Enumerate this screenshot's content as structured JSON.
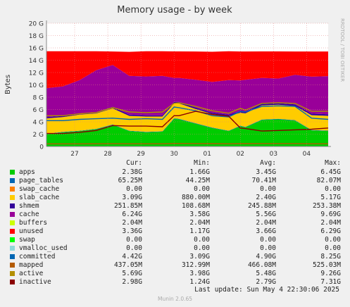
{
  "chart_data": {
    "type": "area",
    "title": "Memory usage - by week",
    "ylabel": "Bytes",
    "side_label": "RRDTOOL / TOBI OETIKER",
    "ylim": [
      0,
      20
    ],
    "yticks": [
      {
        "v": 0,
        "label": "0"
      },
      {
        "v": 2,
        "label": "2 G"
      },
      {
        "v": 4,
        "label": "4 G"
      },
      {
        "v": 6,
        "label": "6 G"
      },
      {
        "v": 8,
        "label": "8 G"
      },
      {
        "v": 10,
        "label": "10 G"
      },
      {
        "v": 12,
        "label": "12 G"
      },
      {
        "v": 14,
        "label": "14 G"
      },
      {
        "v": 16,
        "label": "16 G"
      },
      {
        "v": 18,
        "label": "18 G"
      },
      {
        "v": 20,
        "label": "20 G"
      }
    ],
    "xlim": [
      0,
      8.5
    ],
    "xticks": [
      {
        "v": 0.85,
        "label": "27"
      },
      {
        "v": 1.85,
        "label": "28"
      },
      {
        "v": 2.85,
        "label": "29"
      },
      {
        "v": 3.85,
        "label": "30"
      },
      {
        "v": 4.85,
        "label": "01"
      },
      {
        "v": 5.85,
        "label": "02"
      },
      {
        "v": 6.85,
        "label": "03"
      },
      {
        "v": 7.85,
        "label": "04"
      }
    ],
    "x": [
      0,
      0.5,
      1.0,
      1.5,
      2.0,
      2.5,
      3.0,
      3.5,
      3.85,
      4.0,
      4.5,
      5.0,
      5.5,
      5.85,
      6.0,
      6.5,
      7.0,
      7.5,
      8.0,
      8.5
    ],
    "stack_series": [
      {
        "name": "apps",
        "color": "#00cc00",
        "values": [
          2.0,
          2.3,
          2.5,
          2.8,
          3.5,
          2.5,
          2.3,
          2.4,
          4.5,
          4.4,
          3.7,
          3.0,
          2.5,
          3.3,
          3.1,
          4.3,
          4.4,
          4.2,
          2.6,
          2.5
        ]
      },
      {
        "name": "page_tables",
        "color": "#0066b3",
        "values": [
          0.06,
          0.06,
          0.06,
          0.06,
          0.07,
          0.06,
          0.06,
          0.06,
          0.08,
          0.08,
          0.07,
          0.07,
          0.06,
          0.07,
          0.07,
          0.08,
          0.08,
          0.07,
          0.07,
          0.07
        ]
      },
      {
        "name": "swap_cache",
        "color": "#ff8000",
        "values": [
          0,
          0,
          0,
          0,
          0,
          0,
          0,
          0,
          0,
          0,
          0,
          0,
          0,
          0,
          0,
          0,
          0,
          0,
          0,
          0
        ]
      },
      {
        "name": "slab_cache",
        "color": "#ffcc00",
        "values": [
          2.5,
          2.4,
          2.6,
          2.5,
          2.6,
          2.4,
          2.5,
          2.4,
          2.4,
          2.5,
          2.3,
          2.2,
          2.4,
          2.1,
          2.2,
          2.3,
          2.3,
          2.3,
          2.4,
          2.4
        ]
      },
      {
        "name": "shmem",
        "color": "#330099",
        "values": [
          0.2,
          0.2,
          0.2,
          0.2,
          0.25,
          0.2,
          0.2,
          0.2,
          0.25,
          0.25,
          0.25,
          0.2,
          0.2,
          0.25,
          0.25,
          0.25,
          0.25,
          0.25,
          0.25,
          0.25
        ]
      },
      {
        "name": "cache",
        "color": "#990099",
        "values": [
          4.7,
          4.8,
          5.4,
          6.8,
          6.8,
          6.3,
          6.3,
          6.4,
          3.9,
          3.9,
          4.5,
          5.0,
          5.6,
          5.0,
          5.2,
          4.2,
          4.0,
          4.8,
          6.0,
          6.2
        ]
      },
      {
        "name": "buffers",
        "color": "#ccff00",
        "values": [
          0.002,
          0.002,
          0.002,
          0.002,
          0.002,
          0.002,
          0.002,
          0.002,
          0.002,
          0.002,
          0.002,
          0.002,
          0.002,
          0.002,
          0.002,
          0.002,
          0.002,
          0.002,
          0.002,
          0.002
        ]
      },
      {
        "name": "unused",
        "color": "#ff0000",
        "values": [
          6.0,
          5.7,
          4.7,
          3.1,
          2.2,
          3.9,
          4.1,
          4.0,
          4.3,
          4.3,
          4.6,
          4.9,
          4.7,
          4.7,
          4.6,
          4.3,
          4.4,
          3.8,
          4.1,
          4.0
        ]
      }
    ],
    "line_series": [
      {
        "name": "committed",
        "color": "#0066b3",
        "values": [
          4.2,
          4.2,
          4.4,
          4.5,
          4.6,
          4.4,
          4.5,
          4.4,
          6.4,
          6.3,
          5.8,
          5.0,
          4.8,
          5.7,
          5.6,
          6.5,
          6.6,
          6.5,
          4.6,
          4.4
        ]
      },
      {
        "name": "mapped",
        "color": "#b35a00",
        "values": [
          0.42,
          0.42,
          0.42,
          0.43,
          0.45,
          0.43,
          0.43,
          0.43,
          0.48,
          0.48,
          0.47,
          0.46,
          0.44,
          0.46,
          0.46,
          0.47,
          0.47,
          0.47,
          0.44,
          0.44
        ]
      },
      {
        "name": "active",
        "color": "#b38f00",
        "values": [
          5.0,
          5.0,
          5.3,
          5.5,
          6.3,
          5.6,
          5.5,
          5.6,
          7.0,
          7.1,
          6.5,
          5.8,
          5.4,
          6.2,
          5.9,
          7.0,
          7.1,
          7.0,
          5.7,
          5.7
        ]
      },
      {
        "name": "inactive",
        "color": "#8a0000",
        "values": [
          2.1,
          2.1,
          2.3,
          2.6,
          3.4,
          3.3,
          3.3,
          3.2,
          5.0,
          5.0,
          5.7,
          5.2,
          4.9,
          3.0,
          2.9,
          2.5,
          2.6,
          2.7,
          2.8,
          3.0
        ]
      }
    ]
  },
  "legend": {
    "columns": [
      "Cur:",
      "Min:",
      "Avg:",
      "Max:"
    ],
    "rows": [
      {
        "name": "apps",
        "color": "#00cc00",
        "cur": "2.38G",
        "min": "1.66G",
        "avg": "3.45G",
        "max": "6.45G"
      },
      {
        "name": "page_tables",
        "color": "#0066b3",
        "cur": "65.25M",
        "min": "44.25M",
        "avg": "70.41M",
        "max": "82.07M"
      },
      {
        "name": "swap_cache",
        "color": "#ff8000",
        "cur": "0.00",
        "min": "0.00",
        "avg": "0.00",
        "max": "0.00"
      },
      {
        "name": "slab_cache",
        "color": "#ffcc00",
        "cur": "3.09G",
        "min": "880.00M",
        "avg": "2.40G",
        "max": "5.17G"
      },
      {
        "name": "shmem",
        "color": "#330099",
        "cur": "251.85M",
        "min": "108.68M",
        "avg": "245.88M",
        "max": "253.38M"
      },
      {
        "name": "cache",
        "color": "#990099",
        "cur": "6.24G",
        "min": "3.58G",
        "avg": "5.56G",
        "max": "9.69G"
      },
      {
        "name": "buffers",
        "color": "#ccff00",
        "cur": "2.04M",
        "min": "2.04M",
        "avg": "2.04M",
        "max": "2.04M"
      },
      {
        "name": "unused",
        "color": "#ff0000",
        "cur": "3.36G",
        "min": "1.17G",
        "avg": "3.66G",
        "max": "6.29G"
      },
      {
        "name": "swap",
        "color": "#00ff00",
        "cur": "0.00",
        "min": "0.00",
        "avg": "0.00",
        "max": "0.00"
      },
      {
        "name": "vmalloc_used",
        "color": "#8fd9d9",
        "cur": "0.00",
        "min": "0.00",
        "avg": "0.00",
        "max": "0.00"
      },
      {
        "name": "committed",
        "color": "#0066b3",
        "cur": "4.42G",
        "min": "3.09G",
        "avg": "4.90G",
        "max": "8.25G"
      },
      {
        "name": "mapped",
        "color": "#b35a00",
        "cur": "437.05M",
        "min": "312.99M",
        "avg": "466.08M",
        "max": "525.03M"
      },
      {
        "name": "active",
        "color": "#b38f00",
        "cur": "5.69G",
        "min": "3.98G",
        "avg": "5.48G",
        "max": "9.26G"
      },
      {
        "name": "inactive",
        "color": "#8a0000",
        "cur": "2.98G",
        "min": "1.24G",
        "avg": "2.79G",
        "max": "7.31G"
      }
    ]
  },
  "footer": {
    "last_update": "Last update: Sun May  4 22:30:06 2025",
    "version": "Munin 2.0.65"
  }
}
